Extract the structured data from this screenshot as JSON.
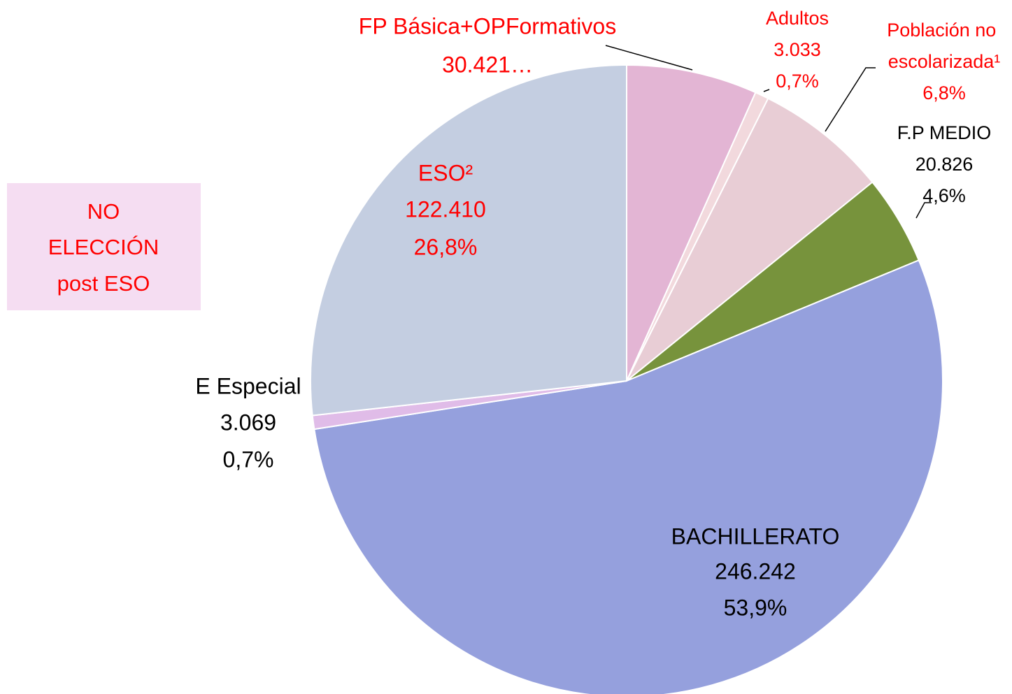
{
  "chart_data": {
    "type": "pie",
    "categories": [
      "FP Básica+OPFormativos",
      "Adultos",
      "Población no escolarizada¹",
      "F.P MEDIO",
      "BACHILLERATO",
      "E Especial",
      "ESO²"
    ],
    "values": [
      6.7,
      0.7,
      6.8,
      4.6,
      53.9,
      0.7,
      26.8
    ],
    "value_labels": [
      null,
      "0,7%",
      "6,8%",
      "4,6%",
      "53,9%",
      "0,7%",
      "26,8%"
    ],
    "count_labels": [
      "30.421…",
      "3.033",
      null,
      "20.826",
      "246.242",
      "3.069",
      "122.410"
    ],
    "colors": [
      "#e3b5d4",
      "#f2d9dd",
      "#e8cdd5",
      "#77933c",
      "#95a0dd",
      "#e0bce8",
      "#c4cee1"
    ],
    "label_colors": [
      "#ff0000",
      "#ff0000",
      "#ff0000",
      "#000000",
      "#000000",
      "#000000",
      "#ff0000"
    ],
    "annotation": [
      "NO",
      "ELECCIÓN",
      "post ESO"
    ]
  }
}
